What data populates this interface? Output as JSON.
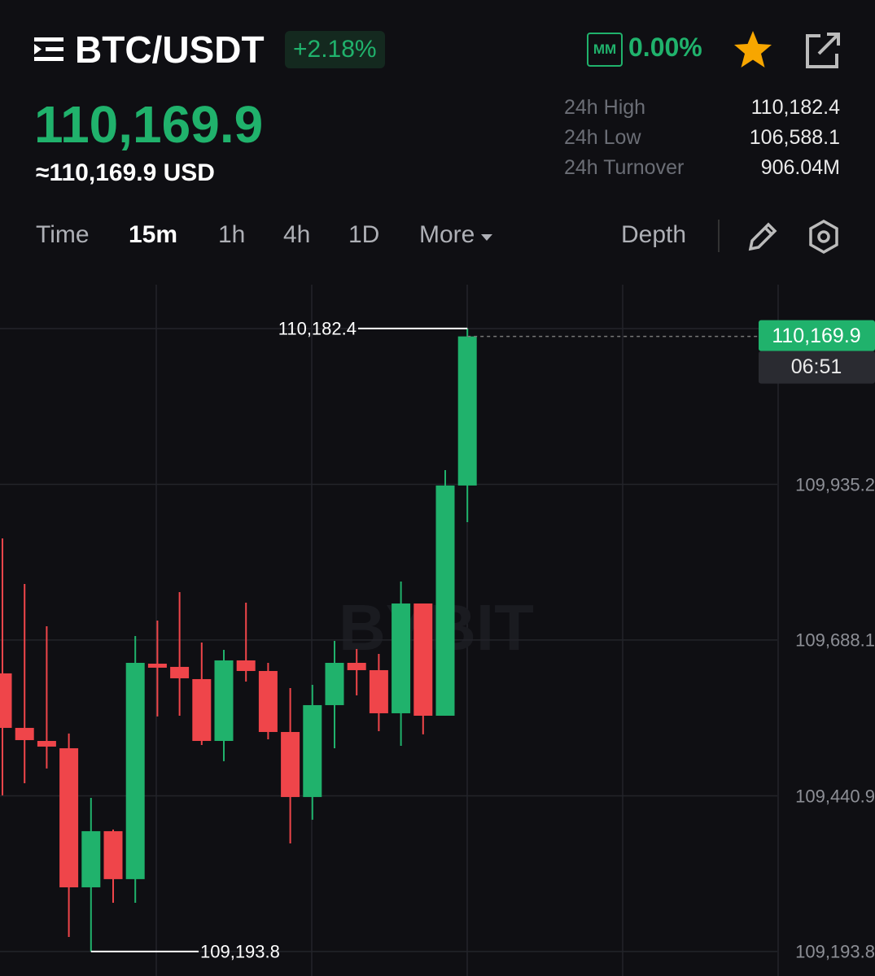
{
  "header": {
    "symbol": "BTC/USDT",
    "change": "+2.18%",
    "mm_icon": "MM",
    "mm_rate": "0.00%",
    "price": "110,169.9",
    "usd_price": "≈110,169.9 USD",
    "stats": [
      {
        "label": "24h High",
        "value": "110,182.4"
      },
      {
        "label": "24h Low",
        "value": "106,588.1"
      },
      {
        "label": "24h Turnover",
        "value": "906.04M"
      }
    ]
  },
  "tabs": {
    "items": [
      "Time",
      "15m",
      "1h",
      "4h",
      "1D",
      "More"
    ],
    "depth": "Depth"
  },
  "chart_data": {
    "type": "candlestick",
    "watermark": "BYBIT",
    "open": [
      109635.2,
      109548.7,
      109528.0,
      109516.4,
      109295.7,
      109384.8,
      109308.7,
      109650.6,
      109645.5,
      109626.1,
      109528.0,
      109655.8,
      109639.0,
      109542.2,
      109439.0,
      109584.8,
      109651.9,
      109640.3,
      109571.9,
      109746.1,
      109568.0,
      109933.3
    ],
    "high": [
      109849.4,
      109777.1,
      109710.0,
      109539.7,
      109437.7,
      109387.4,
      109694.5,
      109719.0,
      109764.2,
      109684.2,
      109672.6,
      109747.4,
      109651.9,
      109611.9,
      109617.1,
      109686.8,
      109673.9,
      109666.1,
      109781.0,
      109746.1,
      109957.8,
      110182.4
    ],
    "low": [
      109441.6,
      109460.9,
      109484.2,
      109217.0,
      109193.8,
      109271.2,
      109271.2,
      109566.8,
      109568.0,
      109521.6,
      109495.8,
      109622.2,
      109530.6,
      109365.4,
      109402.9,
      109516.4,
      109600.3,
      109543.5,
      109520.3,
      109538.4,
      109568.0,
      109875.2
    ],
    "close": [
      109548.7,
      109529.3,
      109519.0,
      109295.7,
      109384.8,
      109308.7,
      109651.9,
      109644.2,
      109627.4,
      109528.0,
      109655.8,
      109639.0,
      109542.2,
      109439.0,
      109584.8,
      109651.9,
      109640.3,
      109571.9,
      109746.1,
      109568.0,
      109933.3,
      110169.9
    ],
    "up_color": "#20b26c",
    "down_color": "#ef454a",
    "ylim": [
      109155,
      110252
    ],
    "yticks": [
      {
        "value": 109193.8,
        "label": "109,193.8"
      },
      {
        "value": 109440.9,
        "label": "109,440.9"
      },
      {
        "value": 109688.1,
        "label": "109,688.1"
      },
      {
        "value": 109935.2,
        "label": "109,935.2"
      }
    ],
    "grid": true,
    "high_marker": {
      "value": 110182.4,
      "label": "110,182.4"
    },
    "low_marker": {
      "value": 109193.8,
      "label": "109,193.8"
    },
    "last_price": {
      "value": 110169.9,
      "label": "110,169.9"
    },
    "countdown": "06:51"
  }
}
